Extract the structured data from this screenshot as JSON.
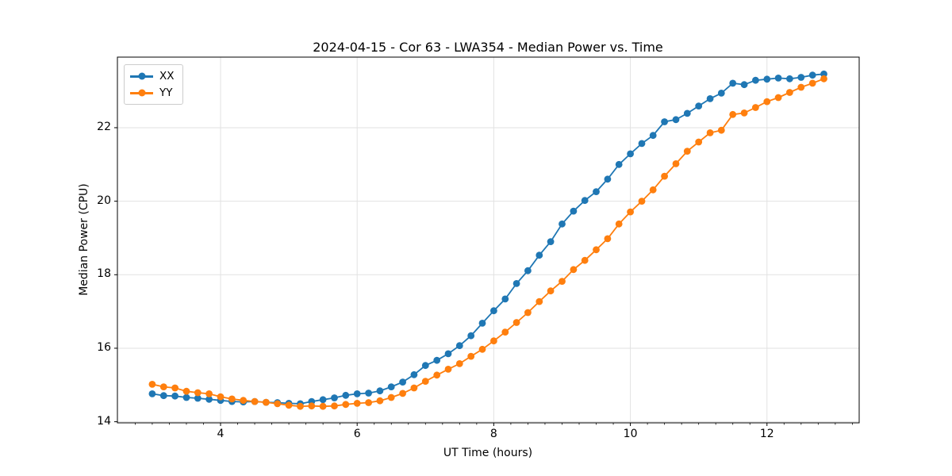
{
  "chart_data": {
    "type": "line",
    "title": "2024-04-15 - Cor 63 - LWA354 - Median Power vs. Time",
    "xlabel": "UT Time (hours)",
    "ylabel": "Median Power (CPU)",
    "xlim": [
      2.49,
      13.35
    ],
    "ylim": [
      13.97,
      23.92
    ],
    "x_major_ticks": [
      4,
      6,
      8,
      10,
      12
    ],
    "x_minor_tick_step": 0.25,
    "y_major_ticks": [
      14,
      16,
      18,
      20,
      22
    ],
    "grid": true,
    "legend_position": "upper-left",
    "x": [
      3.0,
      3.167,
      3.333,
      3.5,
      3.667,
      3.833,
      4.0,
      4.167,
      4.333,
      4.5,
      4.667,
      4.833,
      5.0,
      5.167,
      5.333,
      5.5,
      5.667,
      5.833,
      6.0,
      6.167,
      6.333,
      6.5,
      6.667,
      6.833,
      7.0,
      7.167,
      7.333,
      7.5,
      7.667,
      7.833,
      8.0,
      8.167,
      8.333,
      8.5,
      8.667,
      8.833,
      9.0,
      9.167,
      9.333,
      9.5,
      9.667,
      9.833,
      10.0,
      10.167,
      10.333,
      10.5,
      10.667,
      10.833,
      11.0,
      11.167,
      11.333,
      11.5,
      11.667,
      11.833,
      12.0,
      12.167,
      12.333,
      12.5,
      12.667,
      12.833
    ],
    "series": [
      {
        "name": "XX",
        "color": "#1f77b4",
        "values": [
          14.76,
          14.71,
          14.7,
          14.66,
          14.64,
          14.61,
          14.58,
          14.55,
          14.54,
          14.55,
          14.53,
          14.52,
          14.5,
          14.49,
          14.55,
          14.6,
          14.65,
          14.72,
          14.76,
          14.78,
          14.84,
          14.95,
          15.08,
          15.28,
          15.53,
          15.67,
          15.85,
          16.07,
          16.34,
          16.68,
          17.02,
          17.34,
          17.76,
          18.11,
          18.53,
          18.9,
          19.38,
          19.73,
          20.02,
          20.26,
          20.6,
          21.0,
          21.29,
          21.57,
          21.79,
          22.16,
          22.22,
          22.39,
          22.59,
          22.79,
          22.94,
          23.21,
          23.17,
          23.29,
          23.32,
          23.35,
          23.33,
          23.37,
          23.43,
          23.46
        ]
      },
      {
        "name": "YY",
        "color": "#ff7f0e",
        "values": [
          15.02,
          14.95,
          14.92,
          14.83,
          14.79,
          14.76,
          14.68,
          14.62,
          14.58,
          14.55,
          14.53,
          14.49,
          14.45,
          14.42,
          14.43,
          14.42,
          14.43,
          14.47,
          14.5,
          14.52,
          14.57,
          14.66,
          14.77,
          14.92,
          15.1,
          15.27,
          15.43,
          15.58,
          15.78,
          15.97,
          16.2,
          16.44,
          16.7,
          16.97,
          17.27,
          17.56,
          17.82,
          18.14,
          18.39,
          18.68,
          18.98,
          19.38,
          19.71,
          20.0,
          20.31,
          20.68,
          21.02,
          21.36,
          21.61,
          21.86,
          21.93,
          22.36,
          22.4,
          22.55,
          22.71,
          22.82,
          22.96,
          23.1,
          23.21,
          23.33
        ]
      }
    ]
  }
}
